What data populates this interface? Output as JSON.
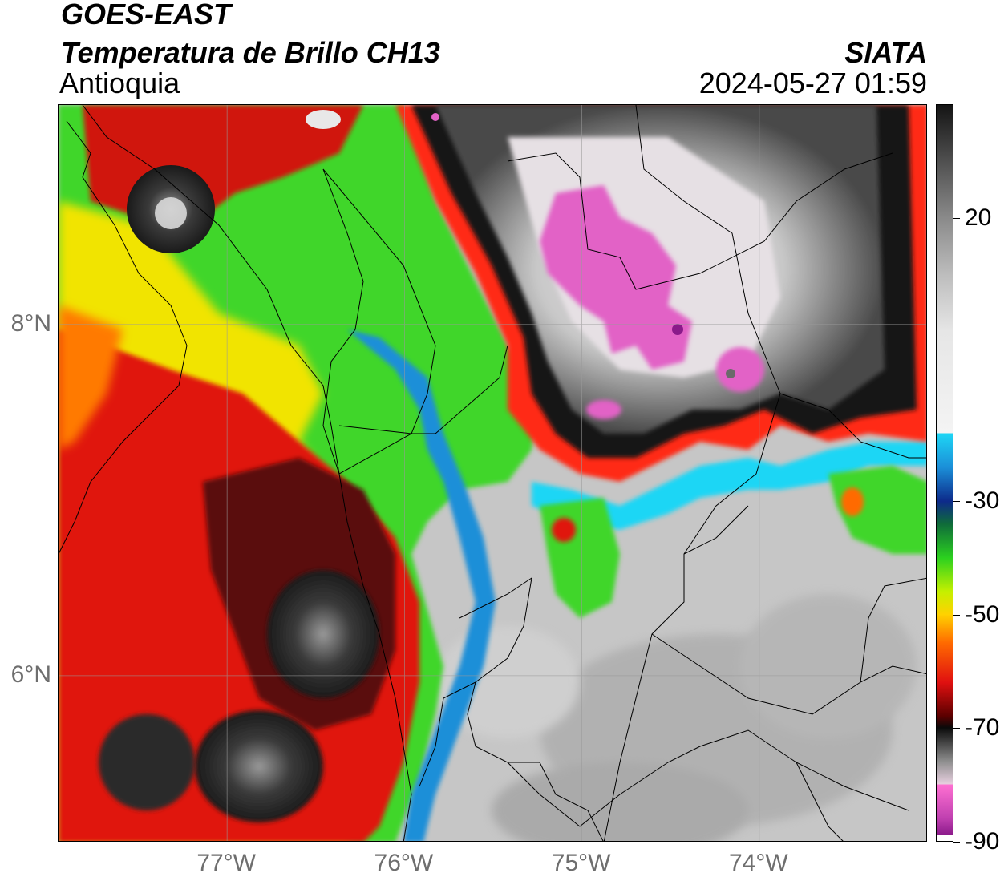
{
  "header": {
    "title_line1": "GOES-EAST",
    "title_line2": "Temperatura de Brillo CH13",
    "region": "Antioquia",
    "agency": "SIATA",
    "datetime": "2024-05-27 01:59"
  },
  "map": {
    "lon_range": [
      -77.95,
      -73.05
    ],
    "lat_range": [
      5.05,
      9.25
    ],
    "lon_ticks": [
      {
        "value": -77,
        "label": "77°W"
      },
      {
        "value": -76,
        "label": "76°W"
      },
      {
        "value": -75,
        "label": "75°W"
      },
      {
        "value": -74,
        "label": "74°W"
      }
    ],
    "lat_ticks": [
      {
        "value": 8,
        "label": "8°N"
      },
      {
        "value": 6,
        "label": "6°N"
      }
    ],
    "gridlines": true,
    "colors": {
      "warm_surface": "#c9c9c9",
      "cloud_warm": "#d4180e",
      "cloud_mid": "#37d71e",
      "cloud_cold_blue": "#1f6fd0",
      "cloud_very_cold": "#6a6a6a",
      "overshoot": "#e262c6"
    }
  },
  "colorbar": {
    "range": [
      -90,
      40
    ],
    "ticks": [
      {
        "value": 20,
        "label": "20"
      },
      {
        "value": -30,
        "label": "-30"
      },
      {
        "value": -50,
        "label": "-50"
      },
      {
        "value": -70,
        "label": "-70"
      },
      {
        "value": -90,
        "label": "-90"
      }
    ],
    "stops": [
      {
        "value": 40,
        "color": "#141414"
      },
      {
        "value": 30,
        "color": "#505050"
      },
      {
        "value": 20,
        "color": "#8a8a8a"
      },
      {
        "value": 10,
        "color": "#bdbdbd"
      },
      {
        "value": 0,
        "color": "#e6e6e6"
      },
      {
        "value": -18,
        "color": "#f4f4f4"
      },
      {
        "value": -18.01,
        "color": "#1ed6f5"
      },
      {
        "value": -24,
        "color": "#1b8fd8"
      },
      {
        "value": -30,
        "color": "#0d2a8a"
      },
      {
        "value": -34,
        "color": "#0f6b3a"
      },
      {
        "value": -40,
        "color": "#2bd11f"
      },
      {
        "value": -46,
        "color": "#c6f000"
      },
      {
        "value": -50,
        "color": "#ffd200"
      },
      {
        "value": -55,
        "color": "#ff6a00"
      },
      {
        "value": -62,
        "color": "#e01010"
      },
      {
        "value": -68,
        "color": "#5a0000"
      },
      {
        "value": -70,
        "color": "#0a0a0a"
      },
      {
        "value": -76,
        "color": "#8f8f8f"
      },
      {
        "value": -80,
        "color": "#e8d0e0"
      },
      {
        "value": -80.01,
        "color": "#ff70d2"
      },
      {
        "value": -86,
        "color": "#c040b0"
      },
      {
        "value": -89,
        "color": "#8a1a8a"
      },
      {
        "value": -89.01,
        "color": "#ffffff"
      }
    ]
  }
}
